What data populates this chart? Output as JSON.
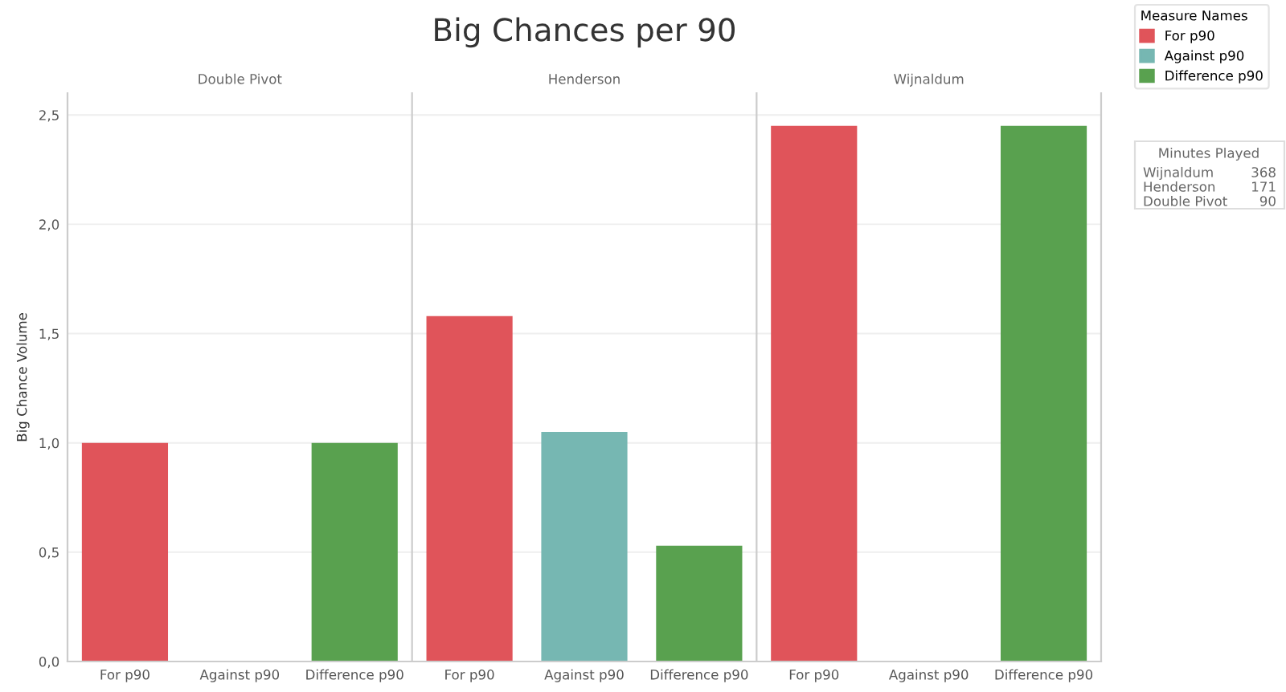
{
  "chart_data": [
    {
      "type": "other",
      "title": "Big Chances per 90"
    },
    {
      "type": "bar",
      "subtitle": "Double Pivot",
      "ylabel": "Big Chance Volume",
      "categories": [
        "For p90",
        "Against p90",
        "Difference p90"
      ],
      "series": [
        {
          "name": "For p90",
          "color": "#e0545a",
          "values": [
            1.0,
            null,
            null
          ]
        },
        {
          "name": "Against p90",
          "color": "#76b7b2",
          "values": [
            null,
            0,
            null
          ]
        },
        {
          "name": "Difference p90",
          "color": "#59a14f",
          "values": [
            null,
            null,
            1.0
          ]
        }
      ],
      "legend": "right",
      "legend_title": "Measure Names",
      "grid": "y",
      "ylim": [
        0,
        2.6
      ],
      "yticks": [
        {
          "value": 0,
          "label": "0,0"
        },
        {
          "value": 0.5,
          "label": "0,5"
        },
        {
          "value": 1,
          "label": "1,0"
        },
        {
          "value": 1.5,
          "label": "1,5"
        },
        {
          "value": 2,
          "label": "2,0"
        },
        {
          "value": 2.5,
          "label": "2,5"
        }
      ]
    },
    {
      "type": "bar",
      "subtitle": "Henderson",
      "categories": [
        "For p90",
        "Against p90",
        "Difference p90"
      ],
      "series": [
        {
          "color": "#e0545a",
          "values": [
            1.58,
            null,
            null
          ]
        },
        {
          "color": "#76b7b2",
          "values": [
            null,
            1.05,
            null
          ]
        },
        {
          "color": "#59a14f",
          "values": [
            null,
            null,
            0.53
          ]
        }
      ],
      "grid": "y",
      "ylim": [
        0,
        2.6
      ],
      "tick_labels": "x",
      "yticks": [
        0,
        0.5,
        1,
        1.5,
        2,
        2.5
      ]
    },
    {
      "type": "bar",
      "subtitle": "Wijnaldum",
      "categories": [
        "For p90",
        "Against p90",
        "Difference p90"
      ],
      "series": [
        {
          "color": "#e0545a",
          "values": [
            2.45,
            null,
            null
          ]
        },
        {
          "color": "#76b7b2",
          "values": [
            null,
            0,
            null
          ]
        },
        {
          "color": "#59a14f",
          "values": [
            null,
            null,
            2.45
          ]
        }
      ],
      "grid": "y",
      "ylim": [
        0,
        2.6
      ],
      "tick_labels": "x",
      "yticks": [
        0,
        0.5,
        1,
        1.5,
        2,
        2.5
      ]
    },
    {
      "type": "other",
      "title": "Minutes Played",
      "categories": [
        "Wijnaldum",
        "Henderson",
        "Double Pivot"
      ],
      "values": [
        368,
        171,
        90
      ],
      "data_labels": true
    }
  ]
}
